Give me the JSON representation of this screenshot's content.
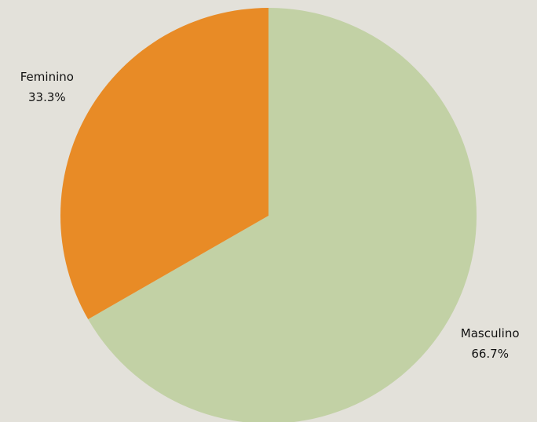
{
  "chart_data": {
    "type": "pie",
    "categories": [
      "Masculino",
      "Feminino"
    ],
    "values": [
      66.7,
      33.3
    ],
    "value_labels": [
      "66.7%",
      "33.3%"
    ],
    "colors": [
      "#c2d1a5",
      "#e88b26"
    ]
  }
}
